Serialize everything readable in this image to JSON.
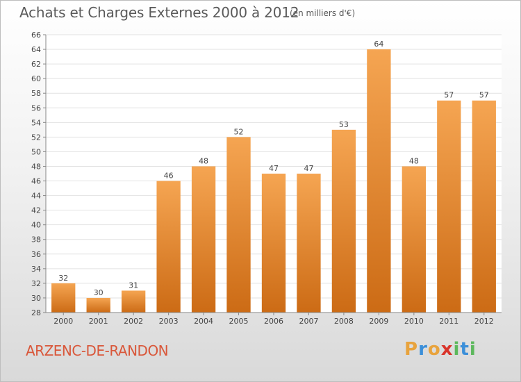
{
  "title": "Achats et Charges Externes 2000 à 2012",
  "unit": "(en milliers d'€)",
  "commune": "ARZENC-DE-RANDON",
  "logo": {
    "letters": [
      "P",
      "r",
      "o",
      "x",
      "i",
      "t",
      "i"
    ],
    "colors": [
      "#e8a33d",
      "#3b8fd9",
      "#e8a33d",
      "#d9342b",
      "#5cb85c",
      "#3b8fd9",
      "#5cb85c"
    ]
  },
  "colors": {
    "bar_top": "#f5a552",
    "bar_bottom": "#cc6b15",
    "commune": "#d9573a"
  },
  "chart_data": {
    "type": "bar",
    "categories": [
      "2000",
      "2001",
      "2002",
      "2003",
      "2004",
      "2005",
      "2006",
      "2007",
      "2008",
      "2009",
      "2010",
      "2011",
      "2012"
    ],
    "values": [
      32,
      30,
      31,
      46,
      48,
      52,
      47,
      47,
      53,
      64,
      48,
      57,
      57
    ],
    "data_labels": [
      "32",
      "30",
      "31",
      "46",
      "48",
      "52",
      "47",
      "47",
      "53",
      "64",
      "48",
      "57",
      "57"
    ],
    "yticks": [
      "28",
      "30",
      "32",
      "34",
      "36",
      "38",
      "40",
      "42",
      "44",
      "46",
      "48",
      "50",
      "52",
      "54",
      "56",
      "58",
      "60",
      "62",
      "64",
      "66"
    ],
    "ylim": [
      28,
      66
    ],
    "ytick_step": 2,
    "grid": true,
    "legend": false
  }
}
